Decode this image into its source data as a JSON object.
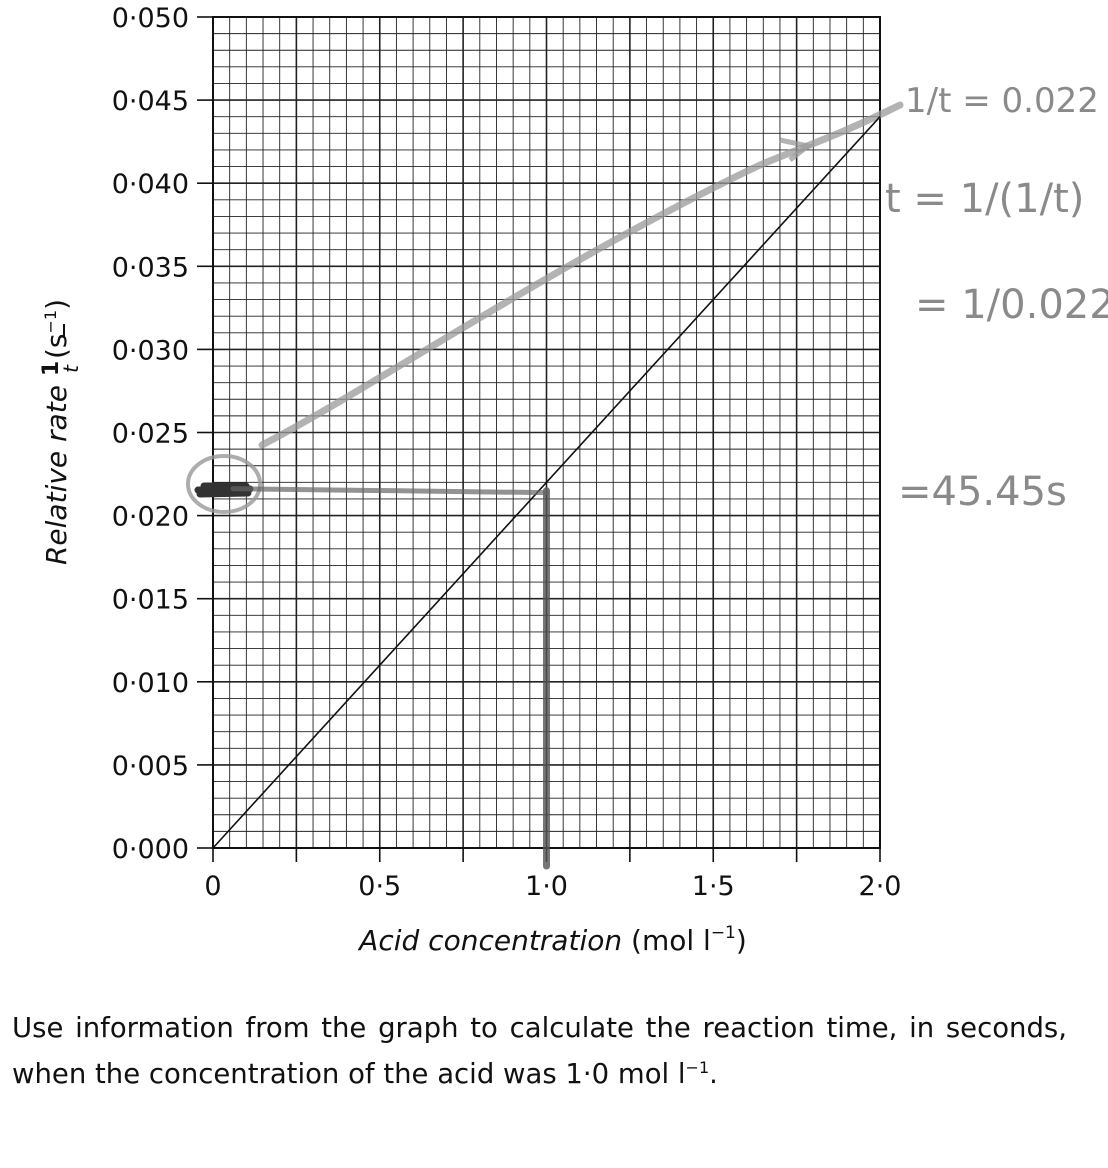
{
  "chart_data": {
    "type": "line",
    "title": "",
    "xlabel": "Acid concentration",
    "xlabel_units": "(mol l",
    "xlabel_units_sup": "−1",
    "xlabel_units_close": ")",
    "ylabel": "Relative rate",
    "ylabel_fraction_num": "1",
    "ylabel_fraction_den": "t",
    "ylabel_units": "(s",
    "ylabel_units_sup": "−1",
    "ylabel_units_close": ")",
    "xlim": [
      0,
      2.0
    ],
    "ylim": [
      0,
      0.05
    ],
    "x_tick_labels": [
      "0",
      "0·5",
      "1·0",
      "1·5",
      "2·0"
    ],
    "x_ticks": [
      0,
      0.5,
      1.0,
      1.5,
      2.0
    ],
    "y_tick_labels": [
      "0·000",
      "0·005",
      "0·010",
      "0·015",
      "0·020",
      "0·025",
      "0·030",
      "0·035",
      "0·040",
      "0·045",
      "0·050"
    ],
    "y_ticks": [
      0,
      0.005,
      0.01,
      0.015,
      0.02,
      0.025,
      0.03,
      0.035,
      0.04,
      0.045,
      0.05
    ],
    "grid": true,
    "series": [
      {
        "name": "relative rate",
        "x": [
          0,
          2.0
        ],
        "y": [
          0,
          0.044
        ]
      }
    ],
    "annotations": {
      "reading_x": 1.0,
      "reading_y": 0.0215,
      "handwriting": [
        "1/t = 0.022",
        "t = 1/(1/t)",
        "= 1/0.022",
        "=45.45s"
      ]
    }
  },
  "question": {
    "text_before": "Use information from the graph to calculate the reaction time, in seconds, when the concentration of the acid was 1·0 mol l",
    "sup": "−1",
    "text_after": "."
  },
  "colors": {
    "ink": "#111111",
    "grid": "#222222",
    "pencil": "#8a8a8a",
    "pencil_dark": "#333333"
  }
}
